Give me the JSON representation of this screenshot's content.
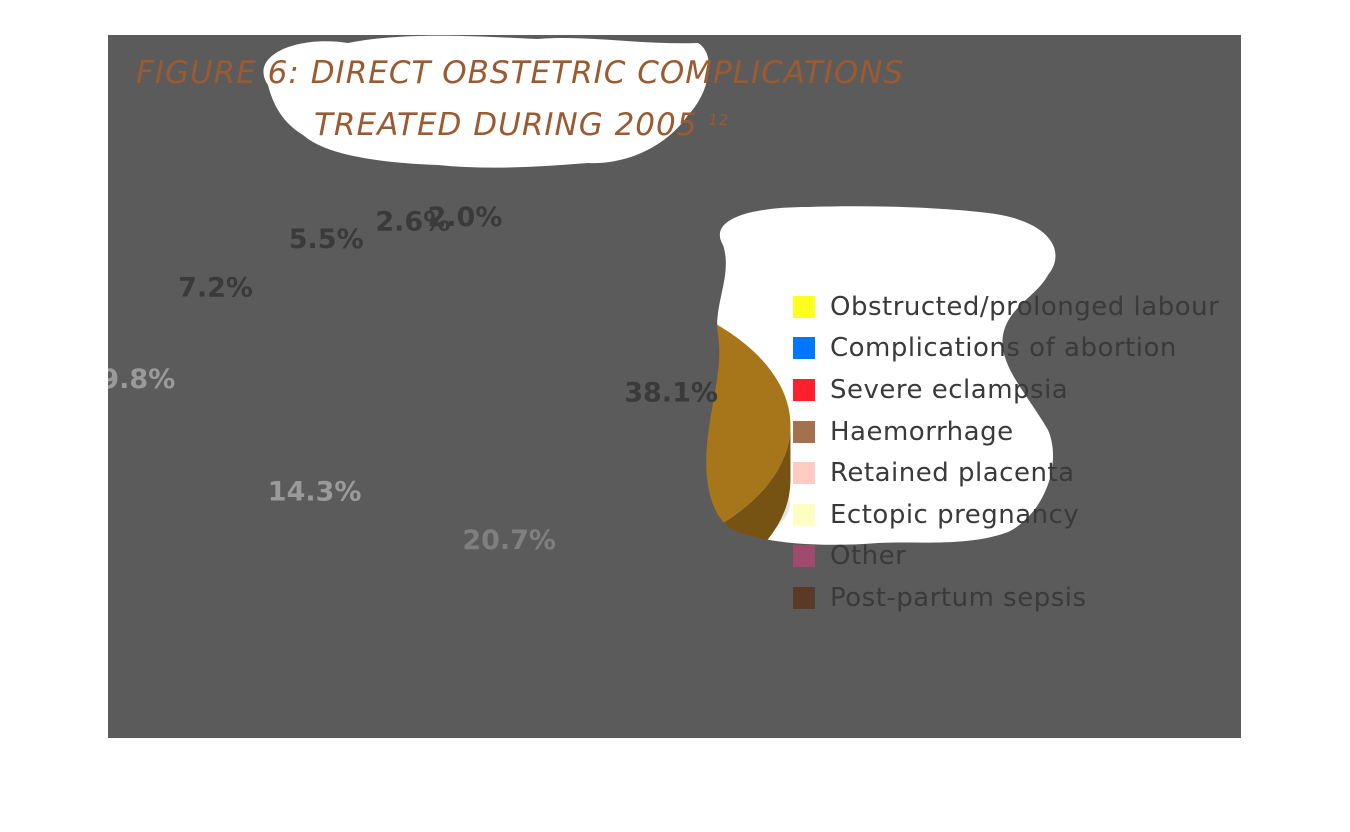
{
  "title": {
    "line1": "FIGURE 6: DIRECT OBSTETRIC COMPLICATIONS",
    "line2": "TREATED DURING 2005",
    "superscript": "12"
  },
  "chart_data": {
    "type": "pie",
    "three_d": true,
    "exploded": true,
    "legend_position": "right",
    "categories": [
      "Obstructed/prolonged labour",
      "Complications of abortion",
      "Severe eclampsia",
      "Haemorrhage",
      "Retained placenta",
      "Ectopic pregnancy",
      "Other",
      "Post-partum sepsis"
    ],
    "values": [
      38.1,
      20.7,
      14.3,
      9.8,
      7.2,
      5.5,
      2.6,
      2.0
    ],
    "value_labels": [
      "38.1%",
      "20.7%",
      "14.3%",
      "9.8%",
      "7.2%",
      "5.5%",
      "2.6%",
      "2.0%"
    ],
    "colors": [
      "#a8761a",
      "#03204f",
      "#930d16",
      "#4e2715",
      "#8b4a4a",
      "#7b6d36",
      "#6a2b42",
      "#6d3e23"
    ],
    "legend_swatch_colors": [
      "#ffff1f",
      "#0076ff",
      "#ff202c",
      "#a4714e",
      "#ffccc4",
      "#fffec2",
      "#9e4b6e",
      "#5a3a26"
    ]
  },
  "overlay": {
    "dim_color": "#5b5b5b",
    "highlight_color": "#ffffff"
  }
}
